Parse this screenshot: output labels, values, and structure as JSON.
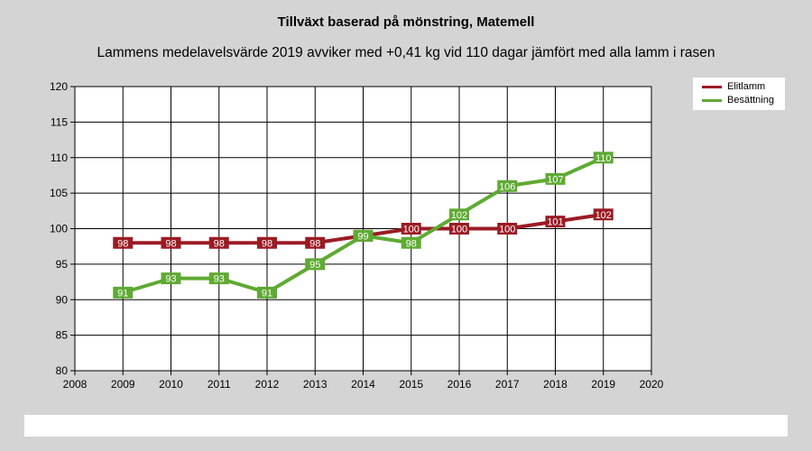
{
  "chart_data": {
    "type": "line",
    "title": "Tillväxt baserad på mönstring, Matemell",
    "subtitle": "Lammens medelavelsvärde 2019 avviker med +0,41 kg vid 110 dagar jämfört med alla lamm i rasen",
    "xlim": [
      2008,
      2020
    ],
    "ylim": [
      80,
      120
    ],
    "x_ticks": [
      2008,
      2009,
      2010,
      2011,
      2012,
      2013,
      2014,
      2015,
      2016,
      2017,
      2018,
      2019,
      2020
    ],
    "y_ticks": [
      80,
      85,
      90,
      95,
      100,
      105,
      110,
      115,
      120
    ],
    "grid": true,
    "legend_position": "top-right",
    "series": [
      {
        "name": "Elitlamm",
        "color": "#9b1b24",
        "x": [
          2009,
          2010,
          2011,
          2012,
          2013,
          2014,
          2015,
          2016,
          2017,
          2018,
          2019
        ],
        "values": [
          98,
          98,
          98,
          98,
          98,
          99,
          100,
          100,
          100,
          101,
          102
        ]
      },
      {
        "name": "Besättning",
        "color": "#5faa33",
        "x": [
          2009,
          2010,
          2011,
          2012,
          2013,
          2014,
          2015,
          2016,
          2017,
          2018,
          2019
        ],
        "values": [
          91,
          93,
          93,
          91,
          95,
          99,
          98,
          102,
          106,
          107,
          110
        ]
      }
    ]
  }
}
